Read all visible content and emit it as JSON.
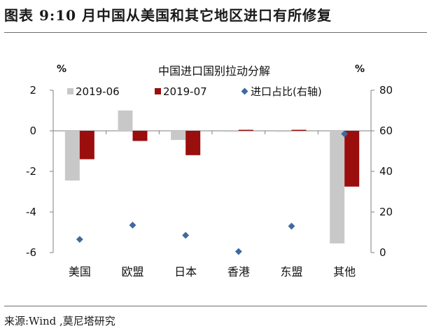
{
  "figure_title": "图表 9:10 月中国从美国和其它地区进口有所修复",
  "source": "来源:Wind ,莫尼塔研究",
  "colors": {
    "s2019_06": "#c8c8c8",
    "s2019_07": "#9b0e0e",
    "share": "#3f6aa1",
    "axis": "#7f7f7f"
  },
  "chart_data": {
    "type": "bar",
    "title": "中国进口国别拉动分解",
    "y_left_unit": "%",
    "y_right_unit": "%",
    "categories": [
      "美国",
      "欧盟",
      "日本",
      "香港",
      "东盟",
      "其他"
    ],
    "ylim": [
      -6,
      2
    ],
    "yticks": [
      "2",
      "0",
      "-2",
      "-4",
      "-6"
    ],
    "y2lim": [
      0,
      80
    ],
    "y2ticks": [
      "80",
      "60",
      "40",
      "20",
      "0"
    ],
    "series": [
      {
        "name": "2019-06",
        "type": "bar",
        "axis": "left",
        "values": [
          -2.45,
          1.0,
          -0.45,
          -0.05,
          -0.05,
          -5.55
        ]
      },
      {
        "name": "2019-07",
        "type": "bar",
        "axis": "left",
        "values": [
          -1.4,
          -0.5,
          -1.2,
          0.05,
          0.05,
          -2.75
        ]
      },
      {
        "name": "进口占比(右轴)",
        "type": "scatter",
        "axis": "right",
        "values": [
          6.5,
          13.5,
          8.5,
          0.5,
          13.0,
          58.5
        ]
      }
    ],
    "legend_position": "top",
    "grid": false
  }
}
